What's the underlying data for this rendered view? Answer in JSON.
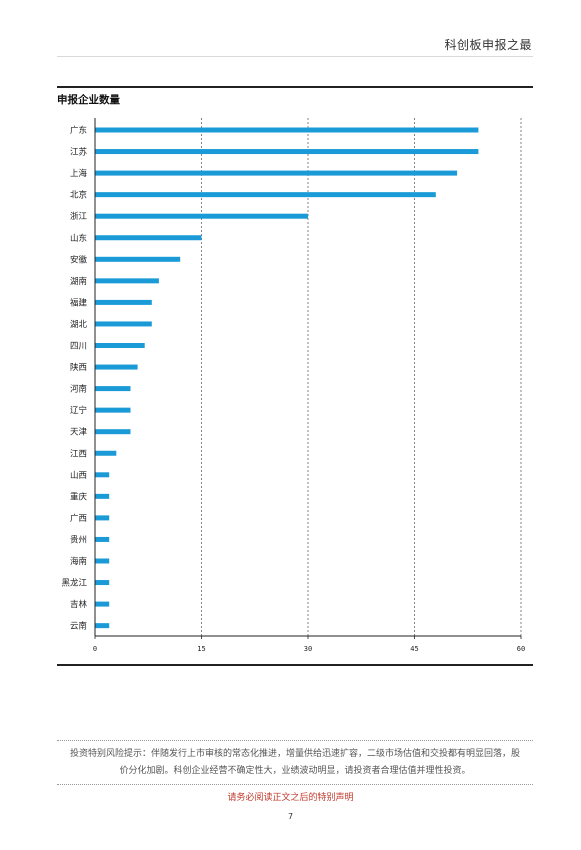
{
  "header": {
    "title": "科创板申报之最"
  },
  "chart_section": {
    "title": "申报企业数量"
  },
  "chart_data": {
    "type": "bar",
    "orientation": "horizontal",
    "title": "申报企业数量",
    "xlabel": "",
    "ylabel": "",
    "categories": [
      "广东",
      "江苏",
      "上海",
      "北京",
      "浙江",
      "山东",
      "安徽",
      "湖南",
      "福建",
      "湖北",
      "四川",
      "陕西",
      "河南",
      "辽宁",
      "天津",
      "江西",
      "山西",
      "重庆",
      "广西",
      "贵州",
      "海南",
      "黑龙江",
      "吉林",
      "云南"
    ],
    "values": [
      54,
      54,
      51,
      48,
      30,
      15,
      12,
      9,
      8,
      8,
      7,
      6,
      5,
      5,
      5,
      3,
      2,
      2,
      2,
      2,
      2,
      2,
      2,
      2
    ],
    "xlim": [
      0,
      60
    ],
    "xticks": [
      0,
      15,
      30,
      45,
      60
    ],
    "xtick_labels": [
      "0",
      "15",
      "30",
      "45",
      "60"
    ],
    "grid": "vertical dashed",
    "bar_color": "#1a9bd7"
  },
  "footer": {
    "disclaimer_line1": "投资特别风险提示：伴随发行上市审核的常态化推进，增量供给迅速扩容，二级市场估值和交投都有明显回落，股",
    "disclaimer_line2": "价分化加剧。科创企业经营不确定性大，业绩波动明显，请投资者合理估值并理性投资。",
    "notice": "请务必阅读正文之后的特别声明",
    "page_number": "7"
  }
}
